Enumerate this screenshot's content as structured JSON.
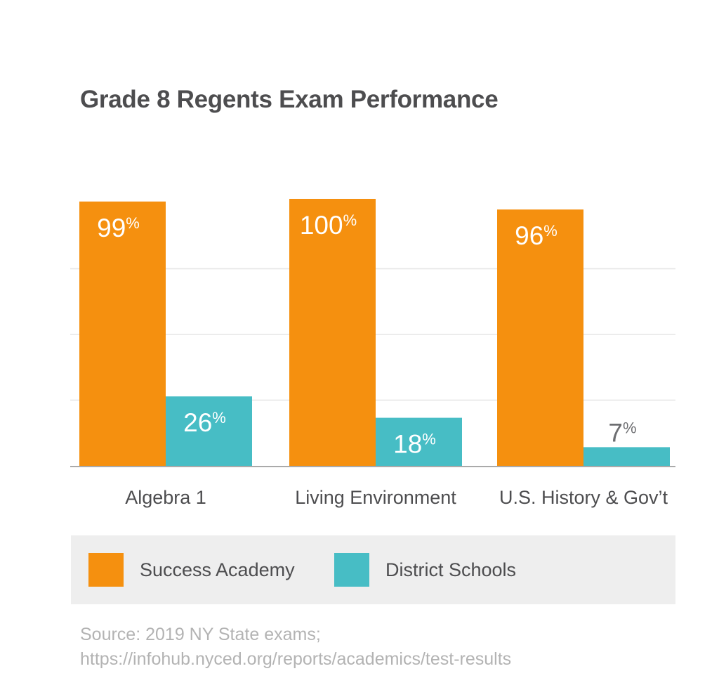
{
  "chart_data": {
    "type": "bar",
    "title": "Grade 8 Regents Exam Performance",
    "categories": [
      "Algebra 1",
      "Living Environment",
      "U.S. History & Gov’t"
    ],
    "series": [
      {
        "name": "Success Academy",
        "values": [
          99,
          100,
          96
        ],
        "color": "#f5900f"
      },
      {
        "name": "District Schools",
        "values": [
          26,
          18,
          7
        ],
        "color": "#47bdc5"
      }
    ],
    "value_suffix": "%",
    "ylim": [
      0,
      100
    ],
    "gridlines": [
      25,
      50,
      75
    ],
    "grid": true,
    "legend_position": "bottom",
    "xlabel": "",
    "ylabel": ""
  },
  "source": {
    "line1": "Source: 2019 NY State exams;",
    "line2": "https://infohub.nyced.org/reports/academics/test-results"
  }
}
